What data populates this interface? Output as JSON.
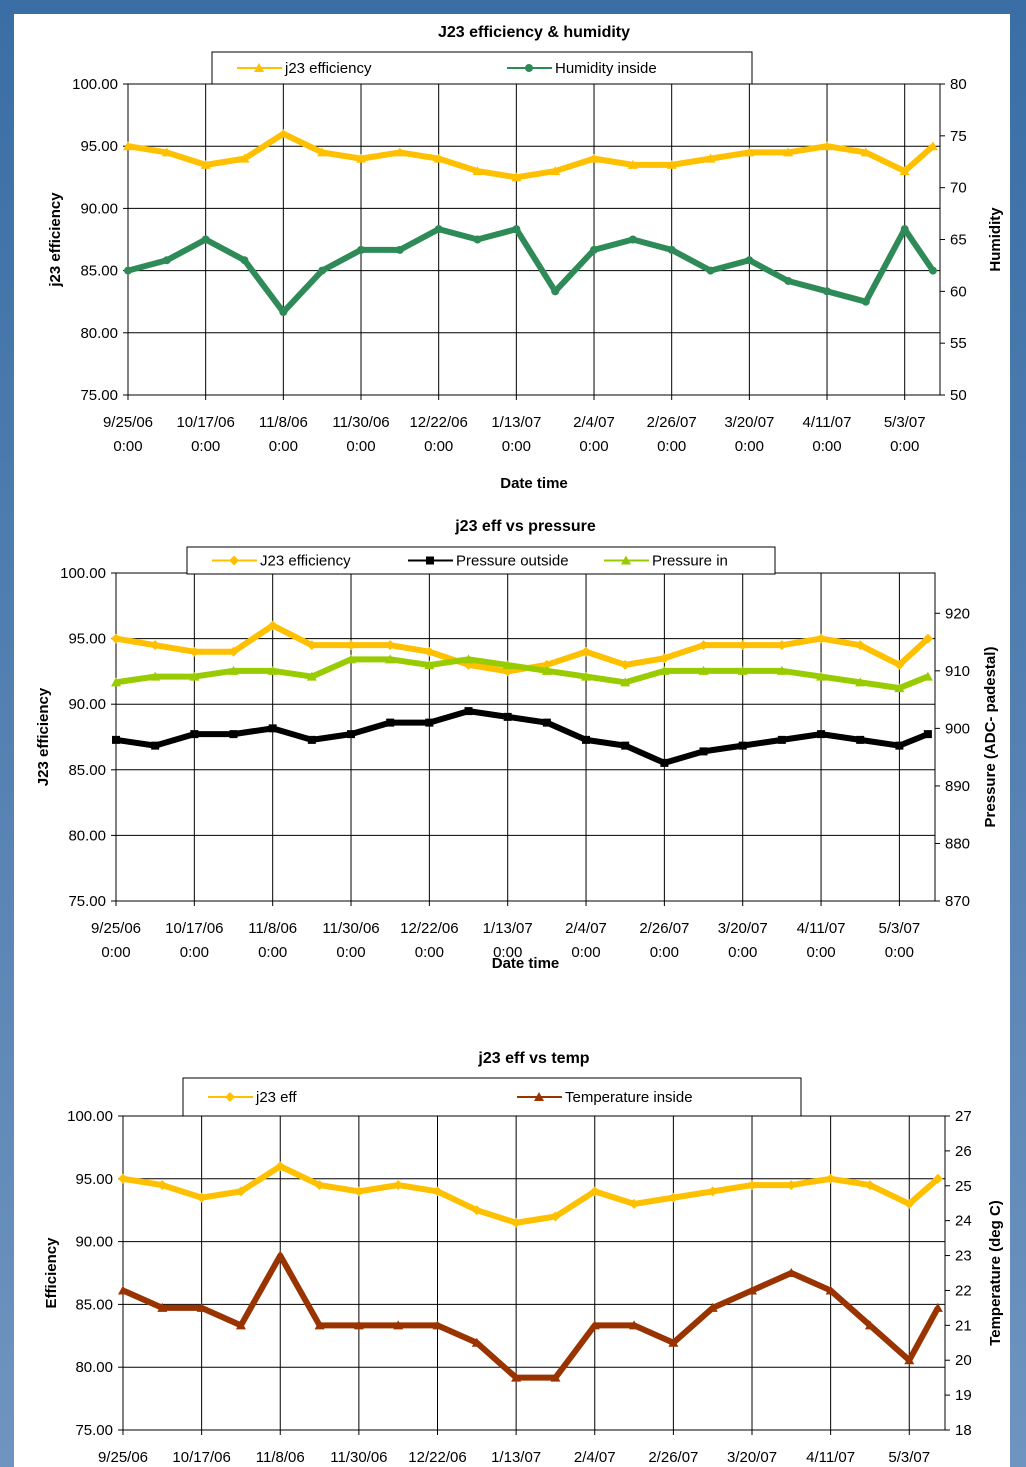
{
  "chart_data": [
    {
      "type": "line",
      "title": "J23 efficiency & humidity",
      "xlabel": "Date time",
      "ylabel": "j23 efficiency",
      "y2label": "Humidity",
      "grid": true,
      "xlim": [
        "2006-09-25",
        "2007-05-13"
      ],
      "xticks": [
        {
          "value": "2006-09-25",
          "label": "9/25/06 0:00"
        },
        {
          "value": "2006-10-17",
          "label": "10/17/06 0:00"
        },
        {
          "value": "2006-11-08",
          "label": "11/8/06 0:00"
        },
        {
          "value": "2006-11-30",
          "label": "11/30/06 0:00"
        },
        {
          "value": "2006-12-22",
          "label": "12/22/06 0:00"
        },
        {
          "value": "2007-01-13",
          "label": "1/13/07 0:00"
        },
        {
          "value": "2007-02-04",
          "label": "2/4/07 0:00"
        },
        {
          "value": "2007-02-26",
          "label": "2/26/07 0:00"
        },
        {
          "value": "2007-03-20",
          "label": "3/20/07 0:00"
        },
        {
          "value": "2007-04-11",
          "label": "4/11/07 0:00"
        },
        {
          "value": "2007-05-03",
          "label": "5/3/07 0:00"
        }
      ],
      "ylim": [
        75,
        100
      ],
      "yticks": [
        {
          "value": 75,
          "label": "75.00"
        },
        {
          "value": 80,
          "label": "80.00"
        },
        {
          "value": 85,
          "label": "85.00"
        },
        {
          "value": 90,
          "label": "90.00"
        },
        {
          "value": 95,
          "label": "95.00"
        },
        {
          "value": 100,
          "label": "100.00"
        }
      ],
      "y2lim": [
        50,
        80
      ],
      "y2ticks": [
        50,
        55,
        60,
        65,
        70,
        75,
        80
      ],
      "x": [
        "2006-09-25",
        "2006-10-06",
        "2006-10-17",
        "2006-10-28",
        "2006-11-08",
        "2006-11-19",
        "2006-11-30",
        "2006-12-11",
        "2006-12-22",
        "2007-01-02",
        "2007-01-13",
        "2007-01-24",
        "2007-02-04",
        "2007-02-15",
        "2007-02-26",
        "2007-03-09",
        "2007-03-20",
        "2007-03-31",
        "2007-04-11",
        "2007-04-22",
        "2007-05-03",
        "2007-05-11"
      ],
      "series": [
        {
          "name": "j23 efficiency",
          "color": "#ffc000",
          "marker": "triangle",
          "values": [
            95,
            94.5,
            93.5,
            94,
            96,
            94.5,
            94,
            94.5,
            94,
            93,
            92.5,
            93,
            94,
            93.5,
            93.5,
            94,
            94.5,
            94.5,
            95,
            94.5,
            93,
            95
          ]
        },
        {
          "name": "Humidity inside",
          "color": "#2e8b57",
          "marker": "circle",
          "axis": "y2",
          "values": [
            62,
            63,
            65,
            63,
            58,
            62,
            64,
            64,
            66,
            65,
            66,
            60,
            64,
            65,
            64,
            62,
            63,
            61,
            60,
            59,
            66,
            62
          ]
        }
      ]
    },
    {
      "type": "line",
      "title": "j23 eff vs pressure",
      "xlabel": "Date time",
      "ylabel": "J23 efficiency",
      "y2label": "Pressure (ADC- padestal)",
      "grid": true,
      "xlim": [
        "2006-09-25",
        "2007-05-13"
      ],
      "xticks": [
        {
          "value": "2006-09-25",
          "label": "9/25/06 0:00"
        },
        {
          "value": "2006-10-17",
          "label": "10/17/06 0:00"
        },
        {
          "value": "2006-11-08",
          "label": "11/8/06 0:00"
        },
        {
          "value": "2006-11-30",
          "label": "11/30/06 0:00"
        },
        {
          "value": "2006-12-22",
          "label": "12/22/06 0:00"
        },
        {
          "value": "2007-01-13",
          "label": "1/13/07 0:00"
        },
        {
          "value": "2007-02-04",
          "label": "2/4/07 0:00"
        },
        {
          "value": "2007-02-26",
          "label": "2/26/07 0:00"
        },
        {
          "value": "2007-03-20",
          "label": "3/20/07 0:00"
        },
        {
          "value": "2007-04-11",
          "label": "4/11/07 0:00"
        },
        {
          "value": "2007-05-03",
          "label": "5/3/07 0:00"
        }
      ],
      "ylim": [
        75,
        100
      ],
      "yticks": [
        {
          "value": 75,
          "label": "75.00"
        },
        {
          "value": 80,
          "label": "80.00"
        },
        {
          "value": 85,
          "label": "85.00"
        },
        {
          "value": 90,
          "label": "90.00"
        },
        {
          "value": 95,
          "label": "95.00"
        },
        {
          "value": 100,
          "label": "100.00"
        }
      ],
      "y2lim": [
        870,
        927
      ],
      "y2ticks": [
        870,
        880,
        890,
        900,
        910,
        920
      ],
      "x": [
        "2006-09-25",
        "2006-10-06",
        "2006-10-17",
        "2006-10-28",
        "2006-11-08",
        "2006-11-19",
        "2006-11-30",
        "2006-12-11",
        "2006-12-22",
        "2007-01-02",
        "2007-01-13",
        "2007-01-24",
        "2007-02-04",
        "2007-02-15",
        "2007-02-26",
        "2007-03-09",
        "2007-03-20",
        "2007-03-31",
        "2007-04-11",
        "2007-04-22",
        "2007-05-03",
        "2007-05-11"
      ],
      "series": [
        {
          "name": "J23 efficiency",
          "color": "#ffc000",
          "marker": "diamond",
          "values": [
            95,
            94.5,
            94,
            94,
            96,
            94.5,
            94.5,
            94.5,
            94,
            93,
            92.5,
            93,
            94,
            93,
            93.5,
            94.5,
            94.5,
            94.5,
            95,
            94.5,
            93,
            95
          ]
        },
        {
          "name": "Pressure outside",
          "color": "#000000",
          "marker": "square",
          "axis": "y2",
          "values": [
            898,
            897,
            899,
            899,
            900,
            898,
            899,
            901,
            901,
            903,
            902,
            901,
            898,
            897,
            894,
            896,
            897,
            898,
            899,
            898,
            897,
            899
          ]
        },
        {
          "name": "Pressure in",
          "color": "#99cc00",
          "marker": "triangle",
          "axis": "y2",
          "values": [
            908,
            909,
            909,
            910,
            910,
            909,
            912,
            912,
            911,
            912,
            911,
            910,
            909,
            908,
            910,
            910,
            910,
            910,
            909,
            908,
            907,
            909
          ]
        }
      ]
    },
    {
      "type": "line",
      "title": "j23 eff vs temp",
      "ylabel": "Efficiency",
      "y2label": "Temperature (deg C)",
      "grid": true,
      "xlim": [
        "2006-09-25",
        "2007-05-13"
      ],
      "xticks": [
        {
          "value": "2006-09-25",
          "label": "9/25/06"
        },
        {
          "value": "2006-10-17",
          "label": "10/17/06"
        },
        {
          "value": "2006-11-08",
          "label": "11/8/06"
        },
        {
          "value": "2006-11-30",
          "label": "11/30/06"
        },
        {
          "value": "2006-12-22",
          "label": "12/22/06"
        },
        {
          "value": "2007-01-13",
          "label": "1/13/07"
        },
        {
          "value": "2007-02-04",
          "label": "2/4/07"
        },
        {
          "value": "2007-02-26",
          "label": "2/26/07"
        },
        {
          "value": "2007-03-20",
          "label": "3/20/07"
        },
        {
          "value": "2007-04-11",
          "label": "4/11/07"
        },
        {
          "value": "2007-05-03",
          "label": "5/3/07"
        }
      ],
      "ylim": [
        75,
        100
      ],
      "yticks": [
        {
          "value": 75,
          "label": "75.00"
        },
        {
          "value": 80,
          "label": "80.00"
        },
        {
          "value": 85,
          "label": "85.00"
        },
        {
          "value": 90,
          "label": "90.00"
        },
        {
          "value": 95,
          "label": "95.00"
        },
        {
          "value": 100,
          "label": "100.00"
        }
      ],
      "y2lim": [
        18,
        27
      ],
      "y2ticks": [
        18,
        19,
        20,
        21,
        22,
        23,
        24,
        25,
        26,
        27
      ],
      "x": [
        "2006-09-25",
        "2006-10-06",
        "2006-10-17",
        "2006-10-28",
        "2006-11-08",
        "2006-11-19",
        "2006-11-30",
        "2006-12-11",
        "2006-12-22",
        "2007-01-02",
        "2007-01-13",
        "2007-01-24",
        "2007-02-04",
        "2007-02-15",
        "2007-02-26",
        "2007-03-09",
        "2007-03-20",
        "2007-03-31",
        "2007-04-11",
        "2007-04-22",
        "2007-05-03",
        "2007-05-11"
      ],
      "series": [
        {
          "name": "j23 eff",
          "color": "#ffc000",
          "marker": "diamond",
          "values": [
            95,
            94.5,
            93.5,
            94,
            96,
            94.5,
            94,
            94.5,
            94,
            92.5,
            91.5,
            92,
            94,
            93,
            93.5,
            94,
            94.5,
            94.5,
            95,
            94.5,
            93,
            95
          ]
        },
        {
          "name": "Temperature inside",
          "color": "#993300",
          "marker": "triangle",
          "axis": "y2",
          "values": [
            22,
            21.5,
            21.5,
            21,
            23,
            21,
            21,
            21,
            21,
            20.5,
            19.5,
            19.5,
            21,
            21,
            20.5,
            21.5,
            22,
            22.5,
            22,
            21,
            20,
            21.5
          ]
        }
      ]
    }
  ]
}
